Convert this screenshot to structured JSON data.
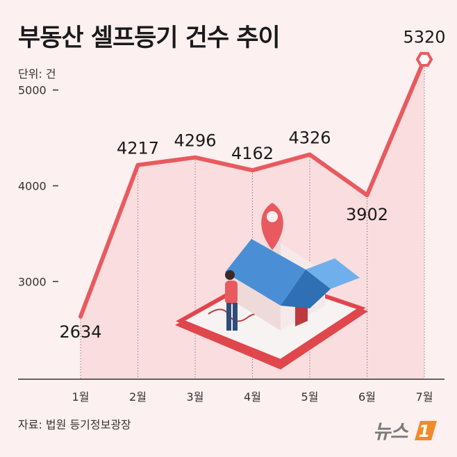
{
  "title": "부동산 셀프등기 건수 추이",
  "unit_label": "단위: 건",
  "source": "자료: 법원 등기정보광장",
  "logo": {
    "text": "뉴스",
    "badge_text": "1"
  },
  "colors": {
    "line": "#e85a5f",
    "fill": "#f9d9da",
    "background": "#fcf0f0",
    "house_roof": "#4a8fd6",
    "house_wall": "#f6e9e9",
    "pin": "#e85a5f"
  },
  "chart_data": {
    "type": "line",
    "categories": [
      "1월",
      "2월",
      "3월",
      "4월",
      "5월",
      "6월",
      "7월"
    ],
    "values": [
      2634,
      4217,
      4296,
      4162,
      4326,
      3902,
      5320
    ],
    "yticks": [
      {
        "value": 3000,
        "label": "3000"
      },
      {
        "value": 4000,
        "label": "4000"
      },
      {
        "value": 5000,
        "label": "5000"
      }
    ],
    "ylim": [
      1980,
      5940
    ],
    "title": "부동산 셀프등기 건수 추이",
    "ylabel": "단위: 건",
    "grid": false
  }
}
